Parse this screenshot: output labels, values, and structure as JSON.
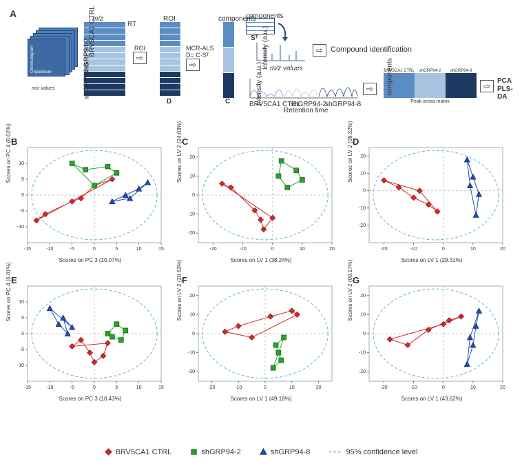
{
  "panelA": {
    "labels": {
      "mz": "m/z",
      "rt": "RT",
      "roi": "ROI",
      "components": "components",
      "mcr": "MCR-ALS",
      "dcs": "D= C·Sᵀ",
      "st": "Sᵀ",
      "mzvalues": "m/z values",
      "retTime": "Retention time",
      "intensity": "Intensity (a.u.)",
      "compId": "Compound identification",
      "peakMatrix": "Peak areas matrix",
      "pca": "PCA",
      "plsda": "PLS-DA",
      "chrom": "Chromatogram",
      "spectrum": "Spectrum",
      "mzvalsUnder": "m/z values",
      "retTimeStack": "Ret. time"
    },
    "groups": [
      "BRV5CA1 CTRL",
      "shGRP94-2",
      "shGRP94-8"
    ],
    "colors": {
      "light": "#a9c4e0",
      "mid": "#5c8cc4",
      "dark": "#1d3a63"
    },
    "matrix_letters": {
      "D": "D",
      "C": "C"
    }
  },
  "plots": {
    "colors": {
      "red": "#d62728",
      "green": "#2ca02c",
      "blue": "#1f4db8",
      "ellipse": "#5fb7c9",
      "grid": "#b0b0b0"
    },
    "ellipse_dash": "4 3",
    "panels": [
      {
        "id": "B",
        "xLabel": "Scores on PC 3 (10.07%)",
        "yLabel": "Scores on PC 4 (8.02%)",
        "xlim": [
          -15,
          15
        ],
        "ylim": [
          -15,
          15
        ],
        "xticks": [
          -15,
          -10,
          -5,
          0,
          5,
          10,
          15
        ],
        "yticks": [
          -10,
          -5,
          0,
          5,
          10
        ],
        "series": {
          "red": [
            [
              -13,
              -8
            ],
            [
              -11,
              -6
            ],
            [
              -5,
              -2
            ],
            [
              -3,
              -1
            ],
            [
              0,
              3
            ],
            [
              4,
              5
            ]
          ],
          "green": [
            [
              -5,
              10
            ],
            [
              -2,
              8
            ],
            [
              3,
              9
            ],
            [
              5,
              7
            ],
            [
              0,
              3
            ]
          ],
          "blue": [
            [
              4,
              -2
            ],
            [
              7,
              0
            ],
            [
              10,
              2
            ],
            [
              12,
              4
            ],
            [
              8,
              -1
            ]
          ]
        }
      },
      {
        "id": "C",
        "xLabel": "Scores on LV 1 (38.24%)",
        "yLabel": "Scores on LV 2 (24.03%)",
        "xlim": [
          -25,
          20
        ],
        "ylim": [
          -25,
          25
        ],
        "xticks": [
          -20,
          -10,
          0,
          10,
          20
        ],
        "yticks": [
          -20,
          -10,
          0,
          10,
          20
        ],
        "series": {
          "red": [
            [
              -17,
              6
            ],
            [
              -14,
              4
            ],
            [
              -6,
              -8
            ],
            [
              -4,
              -13
            ],
            [
              -3,
              -18
            ],
            [
              0,
              -12
            ]
          ],
          "green": [
            [
              3,
              18
            ],
            [
              2,
              10
            ],
            [
              5,
              4
            ],
            [
              10,
              8
            ],
            [
              8,
              13
            ]
          ]
        }
      },
      {
        "id": "D",
        "xLabel": "Scores on LV 1 (29.31%)",
        "yLabel": "Scores on LV 2 (08.32%)",
        "xlim": [
          -25,
          20
        ],
        "ylim": [
          -30,
          25
        ],
        "xticks": [
          -20,
          -10,
          0,
          10,
          20
        ],
        "yticks": [
          -20,
          -10,
          0,
          10,
          20
        ],
        "series": {
          "red": [
            [
              -20,
              6
            ],
            [
              -15,
              2
            ],
            [
              -10,
              -4
            ],
            [
              -5,
              -8
            ],
            [
              -2,
              -12
            ],
            [
              -8,
              0
            ]
          ],
          "blue": [
            [
              8,
              18
            ],
            [
              10,
              8
            ],
            [
              12,
              -2
            ],
            [
              11,
              -14
            ],
            [
              9,
              3
            ]
          ]
        }
      },
      {
        "id": "E",
        "xLabel": "Scores on PC 3 (10.43%)",
        "yLabel": "Scores on PC 4 (6.01%)",
        "xlim": [
          -15,
          15
        ],
        "ylim": [
          -15,
          15
        ],
        "xticks": [
          -15,
          -10,
          -5,
          0,
          5,
          10,
          15
        ],
        "yticks": [
          -10,
          -5,
          0,
          5,
          10
        ],
        "series": {
          "red": [
            [
              -5,
              -4
            ],
            [
              -3,
              -2
            ],
            [
              -1,
              -6
            ],
            [
              0,
              -9
            ],
            [
              2,
              -7
            ],
            [
              3,
              -3
            ]
          ],
          "green": [
            [
              3,
              0
            ],
            [
              5,
              3
            ],
            [
              7,
              1
            ],
            [
              6,
              -2
            ],
            [
              4,
              -1
            ]
          ],
          "blue": [
            [
              -10,
              8
            ],
            [
              -8,
              3
            ],
            [
              -6,
              0
            ],
            [
              -7,
              5
            ],
            [
              -5,
              2
            ]
          ]
        }
      },
      {
        "id": "F",
        "xLabel": "Scores on LV 1 (49.18%)",
        "yLabel": "Scores on LV 2 (20.53%)",
        "xlim": [
          -25,
          25
        ],
        "ylim": [
          -25,
          25
        ],
        "xticks": [
          -20,
          -10,
          0,
          10,
          20
        ],
        "yticks": [
          -20,
          -10,
          0,
          10,
          20
        ],
        "series": {
          "red": [
            [
              -15,
              1
            ],
            [
              -10,
              4
            ],
            [
              2,
              9
            ],
            [
              10,
              12
            ],
            [
              12,
              10
            ],
            [
              -5,
              -2
            ]
          ],
          "green": [
            [
              3,
              -18
            ],
            [
              5,
              -10
            ],
            [
              7,
              -2
            ],
            [
              4,
              -6
            ],
            [
              6,
              -14
            ]
          ]
        }
      },
      {
        "id": "G",
        "xLabel": "Scores on LV 1 (43.62%)",
        "yLabel": "Scores on LV 2 (00.17%)",
        "xlim": [
          -25,
          20
        ],
        "ylim": [
          -25,
          25
        ],
        "xticks": [
          -20,
          -10,
          0,
          10,
          20
        ],
        "yticks": [
          -20,
          -10,
          0,
          10,
          20
        ],
        "series": {
          "red": [
            [
              -18,
              -3
            ],
            [
              -12,
              -6
            ],
            [
              -5,
              2
            ],
            [
              2,
              7
            ],
            [
              6,
              9
            ],
            [
              0,
              5
            ]
          ],
          "blue": [
            [
              8,
              -16
            ],
            [
              10,
              -6
            ],
            [
              11,
              4
            ],
            [
              12,
              12
            ],
            [
              9,
              -2
            ]
          ]
        }
      }
    ]
  },
  "legend": {
    "items": [
      {
        "label": "BRV5CA1 CTRL",
        "shape": "diamond",
        "color": "#d62728"
      },
      {
        "label": "shGRP94-2",
        "shape": "square",
        "color": "#2ca02c"
      },
      {
        "label": "shGRP94-8",
        "shape": "triangle",
        "color": "#1f4db8"
      },
      {
        "label": "95% confidence level",
        "shape": "dash",
        "color": "#5fb7c9"
      }
    ]
  }
}
